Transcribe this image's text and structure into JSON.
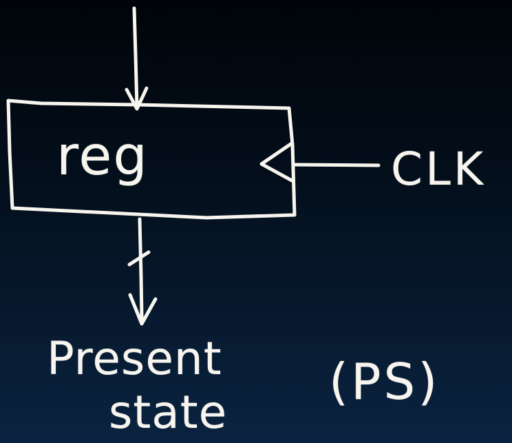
{
  "diagram": {
    "register_label": "reg",
    "clock_label": "CLK",
    "output_label_line1": "Present",
    "output_label_line2": "state",
    "output_abbrev": "(PS)"
  },
  "colors": {
    "chalk": "#f7f5ee",
    "background_top": "#000408",
    "background_bottom": "#0a2340"
  }
}
